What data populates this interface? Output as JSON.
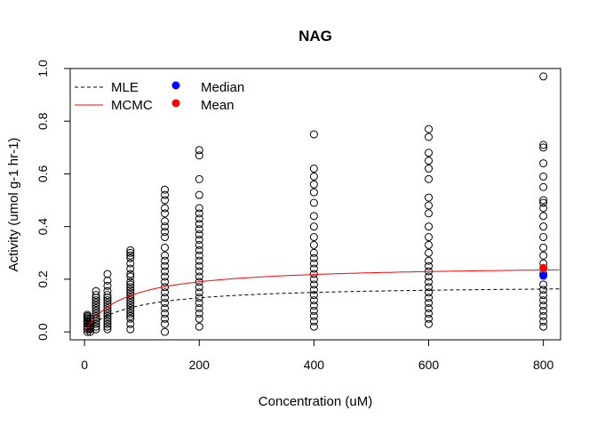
{
  "chart_data": {
    "type": "scatter",
    "title": "NAG",
    "xlabel": "Concentration (uM)",
    "ylabel": "Activity (umol g-1 hr-1)",
    "xlim": [
      -25,
      830
    ],
    "ylim": [
      -0.03,
      1.0
    ],
    "xticks": [
      0,
      200,
      400,
      600,
      800
    ],
    "yticks": [
      0.0,
      0.2,
      0.4,
      0.6,
      0.8,
      1.0
    ],
    "xtick_labels": [
      "0",
      "200",
      "400",
      "600",
      "800"
    ],
    "ytick_labels": [
      "0.0",
      "0.2",
      "0.4",
      "0.6",
      "0.8",
      "1.0"
    ],
    "grid": false,
    "legend_position": "top-left",
    "legend": [
      {
        "label": "MLE",
        "kind": "line",
        "style": "dashed",
        "color": "#000000"
      },
      {
        "label": "MCMC",
        "kind": "line",
        "style": "solid",
        "color": "#ff0000"
      },
      {
        "label": "Median",
        "kind": "point",
        "color": "#0000ff"
      },
      {
        "label": "Mean",
        "kind": "point",
        "color": "#ff0000"
      }
    ],
    "points": [
      {
        "x": 5,
        "ys": [
          0.0,
          0.01,
          0.02,
          0.03,
          0.035,
          0.04,
          0.045,
          0.05,
          0.055,
          0.06,
          0.065
        ]
      },
      {
        "x": 10,
        "ys": [
          0.0,
          0.01,
          0.015,
          0.02,
          0.03,
          0.04,
          0.05
        ]
      },
      {
        "x": 20,
        "ys": [
          0.01,
          0.02,
          0.03,
          0.04,
          0.05,
          0.06,
          0.07,
          0.08,
          0.09,
          0.1,
          0.11,
          0.12,
          0.13,
          0.14,
          0.155
        ]
      },
      {
        "x": 40,
        "ys": [
          0.01,
          0.02,
          0.03,
          0.04,
          0.05,
          0.06,
          0.07,
          0.08,
          0.09,
          0.1,
          0.11,
          0.12,
          0.13,
          0.14,
          0.155,
          0.175,
          0.195,
          0.22
        ]
      },
      {
        "x": 80,
        "ys": [
          0.01,
          0.03,
          0.05,
          0.06,
          0.07,
          0.08,
          0.09,
          0.1,
          0.11,
          0.12,
          0.13,
          0.14,
          0.15,
          0.16,
          0.17,
          0.18,
          0.19,
          0.21,
          0.22,
          0.24,
          0.26,
          0.28,
          0.29,
          0.3,
          0.31
        ]
      },
      {
        "x": 140,
        "ys": [
          0.0,
          0.03,
          0.05,
          0.07,
          0.09,
          0.11,
          0.13,
          0.15,
          0.17,
          0.19,
          0.21,
          0.23,
          0.25,
          0.27,
          0.29,
          0.32,
          0.36,
          0.38,
          0.4,
          0.42,
          0.45,
          0.47,
          0.5,
          0.52,
          0.54
        ]
      },
      {
        "x": 200,
        "ys": [
          0.02,
          0.05,
          0.07,
          0.09,
          0.11,
          0.13,
          0.15,
          0.17,
          0.19,
          0.21,
          0.23,
          0.25,
          0.27,
          0.29,
          0.31,
          0.33,
          0.35,
          0.37,
          0.39,
          0.41,
          0.43,
          0.45,
          0.47,
          0.52,
          0.58,
          0.67,
          0.69
        ]
      },
      {
        "x": 400,
        "ys": [
          0.02,
          0.04,
          0.06,
          0.08,
          0.1,
          0.12,
          0.14,
          0.16,
          0.18,
          0.2,
          0.22,
          0.24,
          0.26,
          0.28,
          0.3,
          0.33,
          0.36,
          0.4,
          0.44,
          0.49,
          0.53,
          0.56,
          0.59,
          0.62,
          0.75
        ]
      },
      {
        "x": 600,
        "ys": [
          0.03,
          0.05,
          0.07,
          0.09,
          0.11,
          0.13,
          0.15,
          0.17,
          0.19,
          0.21,
          0.23,
          0.25,
          0.27,
          0.3,
          0.33,
          0.36,
          0.4,
          0.45,
          0.48,
          0.51,
          0.58,
          0.62,
          0.65,
          0.68,
          0.74,
          0.77
        ]
      },
      {
        "x": 800,
        "ys": [
          0.02,
          0.04,
          0.06,
          0.08,
          0.1,
          0.12,
          0.14,
          0.16,
          0.18,
          0.22,
          0.26,
          0.29,
          0.32,
          0.36,
          0.4,
          0.44,
          0.47,
          0.49,
          0.5,
          0.55,
          0.59,
          0.64,
          0.7,
          0.71,
          0.97
        ]
      }
    ],
    "curves": [
      {
        "name": "MLE",
        "model": "michaelis-menten",
        "vmax": 0.178,
        "km": 75,
        "color": "#000000",
        "dashed": true
      },
      {
        "name": "MCMC",
        "model": "michaelis-menten",
        "vmax": 0.255,
        "km": 68,
        "color": "#ff0000",
        "dashed": false
      }
    ],
    "summary_points": [
      {
        "name": "Median",
        "x": 800,
        "y": 0.213,
        "color": "#0000ff"
      },
      {
        "name": "Mean",
        "x": 800,
        "y": 0.243,
        "color": "#ff0000"
      }
    ]
  }
}
